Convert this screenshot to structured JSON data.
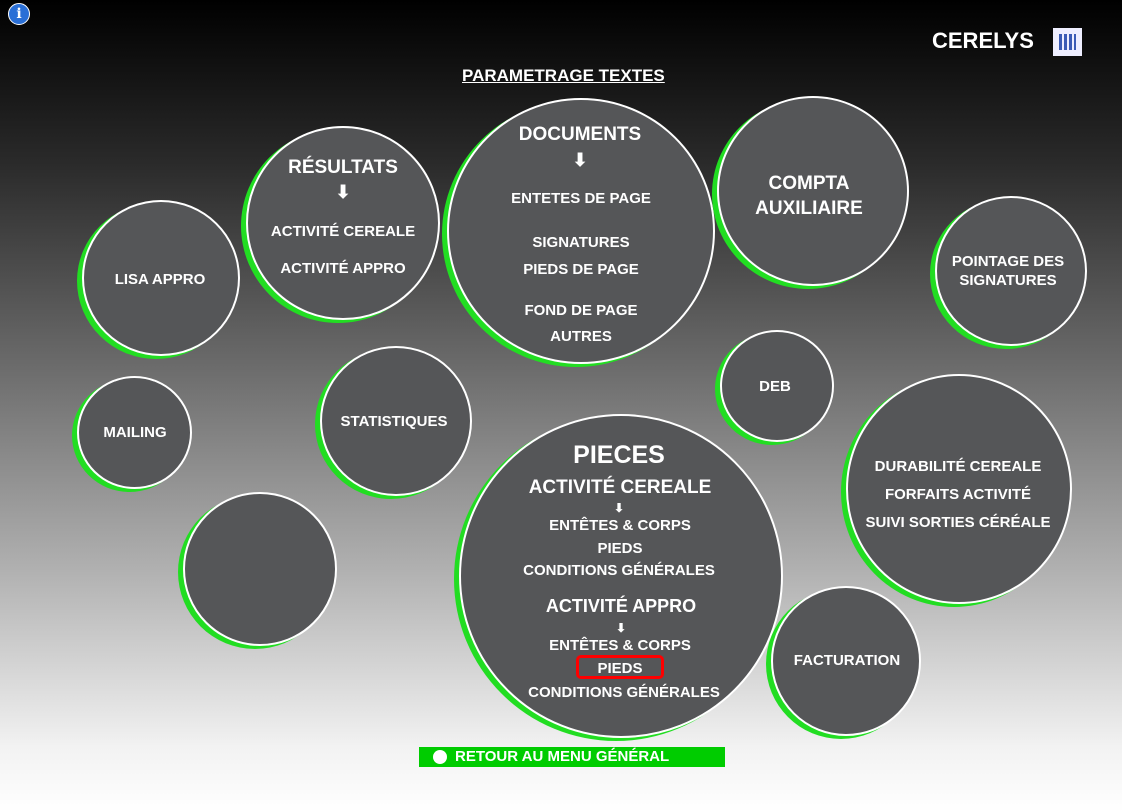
{
  "header": {
    "info_icon": "info-icon",
    "brand": "CERELYS",
    "brand_icon": "building-icon",
    "title": "PARAMETRAGE TEXTES"
  },
  "circles": {
    "lisa": "LISA APPRO",
    "resultats": {
      "title": "RÉSULTATS",
      "items": [
        "ACTIVITÉ CEREALE",
        "ACTIVITÉ APPRO"
      ]
    },
    "documents": {
      "title": "DOCUMENTS",
      "items": [
        "ENTETES DE PAGE",
        "SIGNATURES",
        "PIEDS DE PAGE",
        "FOND DE PAGE",
        "AUTRES"
      ]
    },
    "compta": [
      "COMPTA",
      "AUXILIAIRE"
    ],
    "pointage": [
      "POINTAGE DES",
      "SIGNATURES"
    ],
    "mailing": "MAILING",
    "statistiques": "STATISTIQUES",
    "deb": "DEB",
    "durabilite": [
      "DURABILITÉ CEREALE",
      "FORFAITS ACTIVITÉ",
      "SUIVI SORTIES CÉRÉALE"
    ],
    "pieces": {
      "title": "PIECES",
      "cereale": {
        "title": "ACTIVITÉ CEREALE",
        "items": [
          "ENTÊTES & CORPS",
          "PIEDS",
          "CONDITIONS GÉNÉRALES"
        ]
      },
      "appro": {
        "title": "ACTIVITÉ APPRO",
        "items": [
          "ENTÊTES & CORPS",
          "PIEDS",
          "CONDITIONS GÉNÉRALES"
        ]
      },
      "selected": "appro.PIEDS"
    },
    "facturation": "FACTURATION"
  },
  "footer": {
    "return_label": "RETOUR AU MENU GÉNÉRAL",
    "accent": "#00cc00"
  }
}
